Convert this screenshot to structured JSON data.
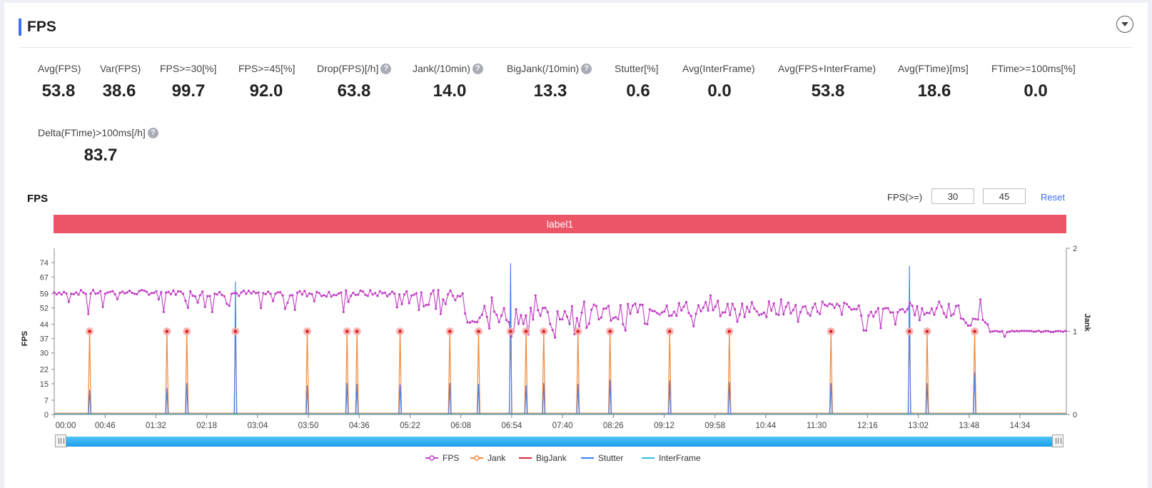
{
  "section": {
    "title": "FPS"
  },
  "metrics": [
    {
      "label": "Avg(FPS)",
      "value": "53.8",
      "help": false
    },
    {
      "label": "Var(FPS)",
      "value": "38.6",
      "help": false
    },
    {
      "label": "FPS>=30[%]",
      "value": "99.7",
      "help": false
    },
    {
      "label": "FPS>=45[%]",
      "value": "92.0",
      "help": false
    },
    {
      "label": "Drop(FPS)[/h]",
      "value": "63.8",
      "help": true
    },
    {
      "label": "Jank(/10min)",
      "value": "14.0",
      "help": true
    },
    {
      "label": "BigJank(/10min)",
      "value": "13.3",
      "help": true
    },
    {
      "label": "Stutter[%]",
      "value": "0.6",
      "help": false
    },
    {
      "label": "Avg(InterFrame)",
      "value": "0.0",
      "help": false
    },
    {
      "label": "Avg(FPS+InterFrame)",
      "value": "53.8",
      "help": false
    },
    {
      "label": "Avg(FTime)[ms]",
      "value": "18.6",
      "help": false
    },
    {
      "label": "FTime>=100ms[%]",
      "value": "0.0",
      "help": false
    },
    {
      "label": "Delta(FTime)>100ms[/h]",
      "value": "83.7",
      "help": true
    }
  ],
  "help_glyph": "?",
  "chart_header": {
    "title": "FPS",
    "filter_label": "FPS(>=)",
    "threshold_low": "30",
    "threshold_high": "45",
    "reset_label": "Reset"
  },
  "label_band": {
    "text": "label1"
  },
  "chart_data": {
    "type": "line",
    "title": "",
    "xlabel": "",
    "ylabel": "FPS",
    "y2label": "Jank",
    "x_tick_labels": [
      "00:00",
      "00:46",
      "01:32",
      "02:18",
      "03:04",
      "03:50",
      "04:36",
      "05:22",
      "06:08",
      "06:54",
      "07:40",
      "08:26",
      "09:12",
      "09:58",
      "10:44",
      "11:30",
      "12:16",
      "13:02",
      "13:48",
      "14:34"
    ],
    "y_ticks": [
      0,
      7,
      15,
      22,
      30,
      37,
      44,
      52,
      59,
      67,
      74
    ],
    "y_max": 81,
    "y2_ticks": [
      0,
      1,
      2
    ],
    "y2_max": 2,
    "x_range_seconds": [
      0,
      916
    ],
    "legend_position": "bottom",
    "colors": {
      "FPS": "#c13ec4",
      "Jank": "#f08a3c",
      "BigJank": "#d9263a",
      "Stutter": "#3e7bf0",
      "InterFrame": "#2cc0e8",
      "jank_halo": "#f4a8a8",
      "jank_dot": "#e02020"
    },
    "series": [
      {
        "name": "FPS",
        "segments": [
          {
            "from": 0,
            "to": 120,
            "mean": 59.5,
            "noise": 1.2
          },
          {
            "from": 120,
            "to": 370,
            "mean": 59.0,
            "noise": 1.6
          },
          {
            "from": 370,
            "to": 520,
            "mean": 49.0,
            "noise": 5.0
          },
          {
            "from": 520,
            "to": 650,
            "mean": 51.5,
            "noise": 4.0
          },
          {
            "from": 650,
            "to": 820,
            "mean": 51.5,
            "noise": 3.5
          },
          {
            "from": 820,
            "to": 845,
            "mean": 45.0,
            "noise": 2.0
          },
          {
            "from": 845,
            "to": 916,
            "mean": 40.5,
            "noise": 0.3
          }
        ],
        "dips": [
          {
            "t": 30,
            "v": 49
          },
          {
            "t": 100,
            "v": 50
          },
          {
            "t": 120,
            "v": 52
          },
          {
            "t": 142,
            "v": 50
          },
          {
            "t": 218,
            "v": 51
          },
          {
            "t": 262,
            "v": 50
          },
          {
            "t": 330,
            "v": 51
          },
          {
            "t": 350,
            "v": 49
          },
          {
            "t": 393,
            "v": 42
          },
          {
            "t": 414,
            "v": 38
          },
          {
            "t": 430,
            "v": 39
          },
          {
            "t": 476,
            "v": 43
          },
          {
            "t": 516,
            "v": 41
          },
          {
            "t": 536,
            "v": 44
          },
          {
            "t": 579,
            "v": 43
          },
          {
            "t": 733,
            "v": 41
          },
          {
            "t": 784,
            "v": 46
          },
          {
            "t": 860,
            "v": 38
          }
        ],
        "peaks": [
          {
            "t": 395,
            "v": 57
          },
          {
            "t": 436,
            "v": 58
          },
          {
            "t": 480,
            "v": 55
          },
          {
            "t": 595,
            "v": 58
          },
          {
            "t": 658,
            "v": 56
          },
          {
            "t": 695,
            "v": 55
          },
          {
            "t": 800,
            "v": 55
          },
          {
            "t": 838,
            "v": 56
          }
        ]
      },
      {
        "name": "Jank",
        "events": [
          32,
          102,
          120,
          164,
          229,
          265,
          274,
          313,
          358,
          384,
          413,
          427,
          443,
          474,
          503,
          557,
          611,
          703,
          774,
          790,
          833
        ]
      },
      {
        "name": "Stutter",
        "events": [
          {
            "t": 32,
            "v": 0.3
          },
          {
            "t": 102,
            "v": 0.32
          },
          {
            "t": 120,
            "v": 0.38
          },
          {
            "t": 164,
            "v": 1.6
          },
          {
            "t": 229,
            "v": 0.35
          },
          {
            "t": 265,
            "v": 0.38
          },
          {
            "t": 274,
            "v": 0.37
          },
          {
            "t": 313,
            "v": 0.36
          },
          {
            "t": 358,
            "v": 0.38
          },
          {
            "t": 384,
            "v": 0.37
          },
          {
            "t": 413,
            "v": 1.82
          },
          {
            "t": 427,
            "v": 0.35
          },
          {
            "t": 443,
            "v": 0.38
          },
          {
            "t": 474,
            "v": 0.37
          },
          {
            "t": 503,
            "v": 0.42
          },
          {
            "t": 557,
            "v": 0.41
          },
          {
            "t": 611,
            "v": 0.39
          },
          {
            "t": 703,
            "v": 0.38
          },
          {
            "t": 774,
            "v": 1.79
          },
          {
            "t": 790,
            "v": 0.38
          },
          {
            "t": 833,
            "v": 0.51
          }
        ]
      },
      {
        "name": "BigJank",
        "values": "none"
      },
      {
        "name": "InterFrame",
        "values": "none"
      }
    ]
  },
  "legend": [
    {
      "label": "FPS"
    },
    {
      "label": "Jank"
    },
    {
      "label": "BigJank"
    },
    {
      "label": "Stutter"
    },
    {
      "label": "InterFrame"
    }
  ]
}
